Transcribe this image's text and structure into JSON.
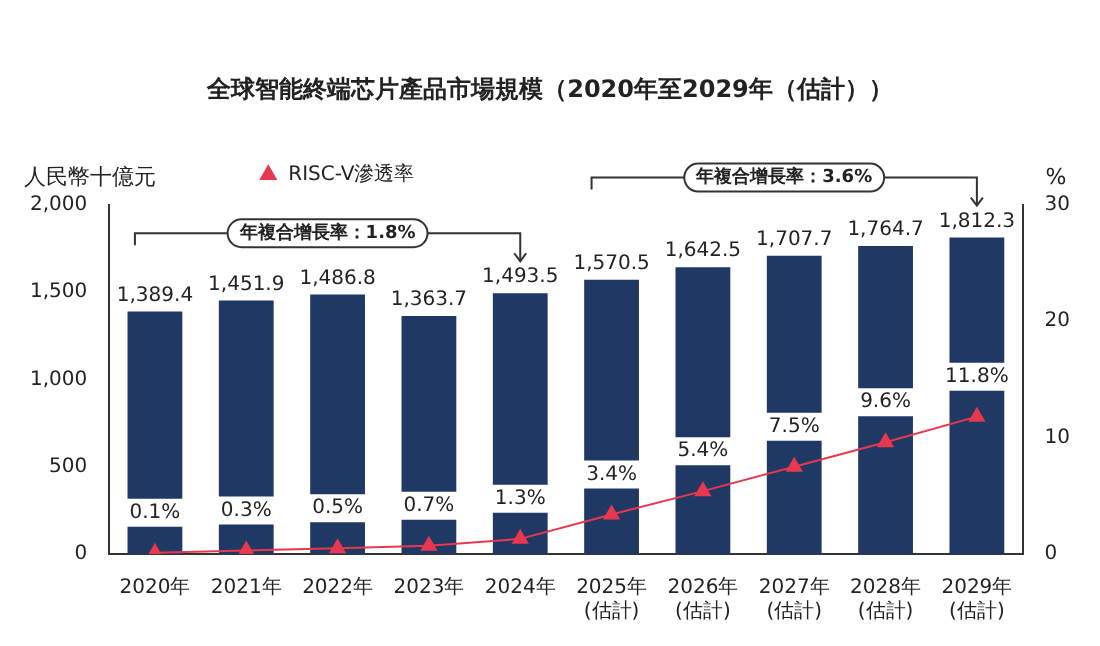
{
  "chart_data": {
    "type": "bar",
    "title": "全球智能終端芯片產品市場規模（2020年至2029年（估計））",
    "ylabel": "人民幣十億元",
    "y2label": "%",
    "categories": [
      "2020年",
      "2021年",
      "2022年",
      "2023年",
      "2024年",
      "2025年\n(估計)",
      "2026年\n(估計)",
      "2027年\n(估計)",
      "2028年\n(估計)",
      "2029年\n(估計)"
    ],
    "series": [
      {
        "color": "#1f3864",
        "values": [
          1389.4,
          1451.9,
          1486.8,
          1363.7,
          1493.5,
          1570.5,
          1642.5,
          1707.7,
          1764.7,
          1812.3
        ],
        "value_labels": [
          "1,389.4",
          "1,451.9",
          "1,486.8",
          "1,363.7",
          "1,493.5",
          "1,570.5",
          "1,642.5",
          "1,707.7",
          "1,764.7",
          "1,812.3"
        ]
      },
      {
        "type": "line",
        "name": "RISC-V滲透率",
        "axis": "y2",
        "color": "#e8384f",
        "marker": "triangle",
        "values": [
          0.1,
          0.3,
          0.5,
          0.7,
          1.3,
          3.4,
          5.4,
          7.5,
          9.6,
          11.8
        ],
        "value_labels": [
          "0.1%",
          "0.3%",
          "0.5%",
          "0.7%",
          "1.3%",
          "3.4%",
          "5.4%",
          "7.5%",
          "9.6%",
          "11.8%"
        ]
      }
    ],
    "ylim": [
      0,
      2000
    ],
    "yticks": [
      0,
      {
        "value": 500,
        "label": "500"
      },
      {
        "value": 1000,
        "label": "1,000"
      },
      {
        "value": 1500,
        "label": "1,500"
      },
      {
        "value": 2000,
        "label": "2,000"
      }
    ],
    "y2lim": [
      0,
      30
    ],
    "y2ticks": [
      0,
      10,
      20,
      30
    ],
    "annotations": [
      "年複合增長率：1.8%",
      "年複合增長率：3.6%"
    ],
    "legend": "top",
    "grid": false
  }
}
